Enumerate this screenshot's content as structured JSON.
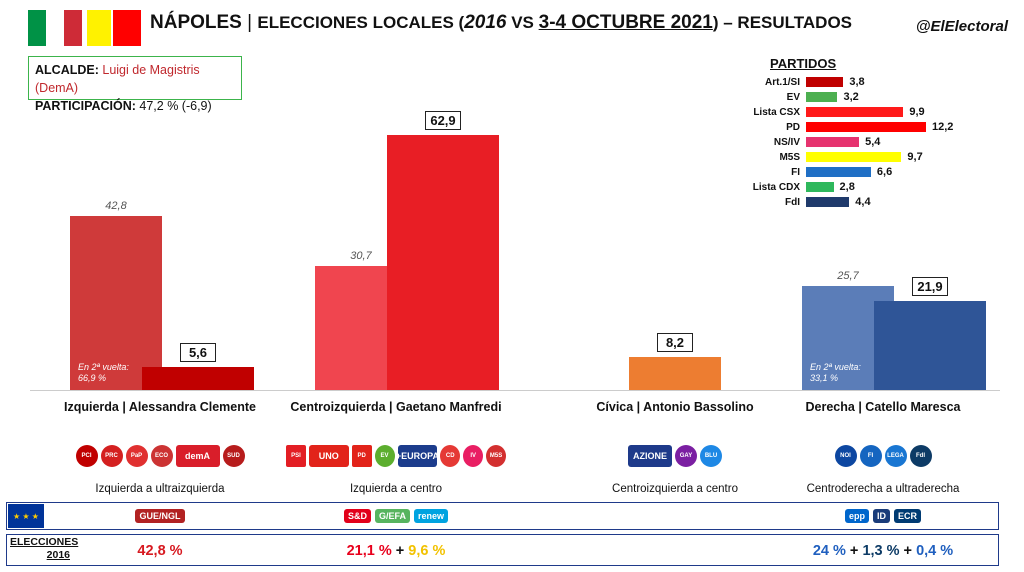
{
  "header": {
    "title_city": "NÁPOLES",
    "title_sep": " | ",
    "title_main": "ELECCIONES LOCALES (",
    "title_year": "2016",
    "title_vs": " VS ",
    "title_dates": "3-4 OCTUBRE 2021",
    "title_end": ") – RESULTADOS",
    "handle": "@ElElectoral"
  },
  "info": {
    "mayor_label": "ALCALDE:",
    "mayor_name": "Luigi de Magistris (DemA)",
    "turnout_label": "PARTICIPACIÓN:",
    "turnout_value": "47,2 % (-6,9)"
  },
  "colors": {
    "flag_green": "#009246",
    "flag_red": "#ce2b37",
    "flag_yellow": "#fff200"
  },
  "chart_data": [
    {
      "type": "bar",
      "categories": [
        "Izquierda | Alessandra Clemente",
        "Centroizquierda | Gaetano Manfredi",
        "Cívica | Antonio Bassolino",
        "Derecha | Catello Maresca"
      ],
      "series": [
        {
          "name": "2016",
          "values": [
            42.8,
            30.7,
            null,
            25.7
          ],
          "labels": [
            "42,8",
            "30,7",
            "",
            "25,7"
          ],
          "colors": [
            "#cf3a3a",
            "#f0454f",
            "",
            "#5b7db8"
          ]
        },
        {
          "name": "2021",
          "values": [
            5.6,
            62.9,
            8.2,
            21.9
          ],
          "labels": [
            "5,6",
            "62,9",
            "8,2",
            "21,9"
          ],
          "colors": [
            "#c00000",
            "#e81e25",
            "#ed7d31",
            "#2f5597"
          ]
        }
      ],
      "runoff_notes": [
        "En 2ª vuelta:\n66,9 %",
        "",
        "",
        "En 2ª vuelta:\n33,1 %"
      ],
      "ylim": [
        0,
        70
      ]
    },
    {
      "type": "bar",
      "title": "PARTIDOS",
      "categories": [
        "Art.1/SI",
        "EV",
        "Lista CSX",
        "PD",
        "NS/IV",
        "M5S",
        "FI",
        "Lista CDX",
        "FdI"
      ],
      "values": [
        3.8,
        3.2,
        9.9,
        12.2,
        5.4,
        9.7,
        6.6,
        2.8,
        4.4
      ],
      "labels": [
        "3,8",
        "3,2",
        "9,9",
        "12,2",
        "5,4",
        "9,7",
        "6,6",
        "2,8",
        "4,4"
      ],
      "colors": [
        "#c00000",
        "#4caf50",
        "#ff1a1a",
        "#ff0000",
        "#e6336f",
        "#ffff00",
        "#1f6fc5",
        "#2eb85c",
        "#1f3a6b"
      ]
    }
  ],
  "candidates": [
    {
      "label": "Izquierda | Alessandra Clemente",
      "range": "Izquierda a ultraizquierda",
      "logos": [
        {
          "name": "pci",
          "text": "PCI",
          "color": "#c00000"
        },
        {
          "name": "prc",
          "text": "PRC",
          "color": "#d42020"
        },
        {
          "name": "pap",
          "text": "PaP",
          "color": "#e03030"
        },
        {
          "name": "ecosocialisti",
          "text": "ECO",
          "color": "#c33"
        },
        {
          "name": "dema",
          "text": "demA",
          "color": "#d91e2a",
          "wide": true
        },
        {
          "name": "partito-del-sud",
          "text": "SUD",
          "color": "#b71c1c"
        }
      ],
      "eu": [
        {
          "name": "gue-ngl",
          "text": "GUE/NGL",
          "color": "#b22222"
        }
      ],
      "elections_2016": [
        {
          "text": "42,8 %",
          "color": "#d71920"
        }
      ]
    },
    {
      "label": "Centroizquierda | Gaetano Manfredi",
      "range": "Izquierda a centro",
      "logos": [
        {
          "name": "psi",
          "text": "PSI",
          "color": "#e31e24",
          "sq": true
        },
        {
          "name": "articolo-uno",
          "text": "UNO",
          "color": "#e2231a",
          "wide": true
        },
        {
          "name": "pd",
          "text": "PD",
          "color": "#e2231a",
          "sq": true
        },
        {
          "name": "europa-verde",
          "text": "EV",
          "color": "#5cae2e"
        },
        {
          "name": "piu-europa",
          "text": "+EUROPA",
          "color": "#1c3c8c",
          "wide": true
        },
        {
          "name": "centro-democratico",
          "text": "CD",
          "color": "#e53935"
        },
        {
          "name": "italia-viva",
          "text": "IV",
          "color": "#e91e63"
        },
        {
          "name": "m5s",
          "text": "M5S",
          "color": "#d32f2f"
        }
      ],
      "eu": [
        {
          "name": "s-and-d",
          "text": "S&D",
          "color": "#e2001a"
        },
        {
          "name": "greens-efa",
          "text": "G/EFA",
          "color": "#57b45f"
        },
        {
          "name": "renew-europe",
          "text": "renew",
          "color": "#00a3e0"
        }
      ],
      "elections_2016": [
        {
          "text": "21,1 %",
          "color": "#e8001c"
        },
        {
          "text": " + ",
          "color": "#111111"
        },
        {
          "text": "9,6 %",
          "color": "#f2c200"
        }
      ]
    },
    {
      "label": "Cívica | Antonio Bassolino",
      "range": "Centroizquierda a centro",
      "logos": [
        {
          "name": "azione",
          "text": "AZIONE",
          "color": "#1e3a8a",
          "wide": true
        },
        {
          "name": "civica-gay",
          "text": "GAY",
          "color": "#7b1fa2"
        },
        {
          "name": "civica-blu",
          "text": "BLU",
          "color": "#1e88e5"
        }
      ],
      "eu": [],
      "elections_2016": []
    },
    {
      "label": "Derecha | Catello Maresca",
      "range": "Centroderecha a ultraderecha",
      "logos": [
        {
          "name": "noi-con-italia",
          "text": "NOI",
          "color": "#0d47a1"
        },
        {
          "name": "forza-italia",
          "text": "FI",
          "color": "#1565c0"
        },
        {
          "name": "lega",
          "text": "LEGA",
          "color": "#1976d2"
        },
        {
          "name": "fratelli-italia",
          "text": "FdI",
          "color": "#0d3b66"
        }
      ],
      "eu": [
        {
          "name": "epp",
          "text": "epp",
          "color": "#0066cc"
        },
        {
          "name": "id",
          "text": "ID",
          "color": "#1a3c7a"
        },
        {
          "name": "ecr",
          "text": "ECR",
          "color": "#003b73"
        }
      ],
      "elections_2016": [
        {
          "text": "24 %",
          "color": "#1f5fbf"
        },
        {
          "text": " + ",
          "color": "#111111"
        },
        {
          "text": "1,3 %",
          "color": "#0d3b66"
        },
        {
          "text": " + ",
          "color": "#111111"
        },
        {
          "text": "0,4 %",
          "color": "#1f5fbf"
        }
      ]
    }
  ],
  "elections_label": {
    "head": "ELECCIONES",
    "year": "2016"
  }
}
